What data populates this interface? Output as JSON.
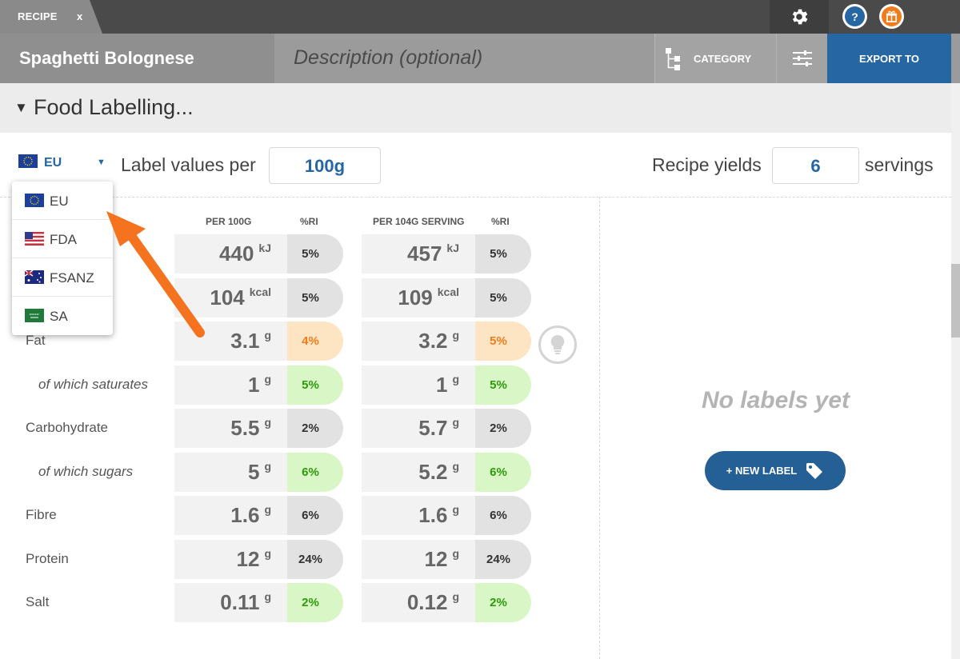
{
  "tab": {
    "label": "RECIPE",
    "close": "x"
  },
  "topbar": {
    "help": "?"
  },
  "titlebar": {
    "recipe_title": "Spaghetti Bolognese",
    "description_placeholder": "Description (optional)",
    "category_label": "CATEGORY",
    "export_label": "EXPORT TO"
  },
  "section": {
    "arrow": "▼",
    "title": "Food Labelling..."
  },
  "controls": {
    "region": "EU",
    "region_caret": "▼",
    "label_values_per": "Label values per",
    "per_value": "100g",
    "recipe_yields": "Recipe yields",
    "servings_value": "6",
    "servings": "servings"
  },
  "columns": {
    "per100": "PER 100G",
    "ri1": "%RI",
    "perserving": "PER 104G SERVING",
    "ri2": "%RI"
  },
  "rows": [
    {
      "label": "",
      "sub": false,
      "v1": "440",
      "u1": "kJ",
      "r1": "5%",
      "c1": "grey",
      "v2": "457",
      "u2": "kJ",
      "r2": "5%",
      "c2": "grey"
    },
    {
      "label": "",
      "sub": false,
      "v1": "104",
      "u1": "kcal",
      "r1": "5%",
      "c1": "grey",
      "v2": "109",
      "u2": "kcal",
      "r2": "5%",
      "c2": "grey"
    },
    {
      "label": "Fat",
      "sub": false,
      "v1": "3.1",
      "u1": "g",
      "r1": "4%",
      "c1": "orange",
      "v2": "3.2",
      "u2": "g",
      "r2": "5%",
      "c2": "orange"
    },
    {
      "label": "of which saturates",
      "sub": true,
      "v1": "1",
      "u1": "g",
      "r1": "5%",
      "c1": "green",
      "v2": "1",
      "u2": "g",
      "r2": "5%",
      "c2": "green"
    },
    {
      "label": "Carbohydrate",
      "sub": false,
      "v1": "5.5",
      "u1": "g",
      "r1": "2%",
      "c1": "grey",
      "v2": "5.7",
      "u2": "g",
      "r2": "2%",
      "c2": "grey"
    },
    {
      "label": "of which sugars",
      "sub": true,
      "v1": "5",
      "u1": "g",
      "r1": "6%",
      "c1": "green",
      "v2": "5.2",
      "u2": "g",
      "r2": "6%",
      "c2": "green"
    },
    {
      "label": "Fibre",
      "sub": false,
      "v1": "1.6",
      "u1": "g",
      "r1": "6%",
      "c1": "grey",
      "v2": "1.6",
      "u2": "g",
      "r2": "6%",
      "c2": "grey"
    },
    {
      "label": "Protein",
      "sub": false,
      "v1": "12",
      "u1": "g",
      "r1": "24%",
      "c1": "grey",
      "v2": "12",
      "u2": "g",
      "r2": "24%",
      "c2": "grey"
    },
    {
      "label": "Salt",
      "sub": false,
      "v1": "0.11",
      "u1": "g",
      "r1": "2%",
      "c1": "green",
      "v2": "0.12",
      "u2": "g",
      "r2": "2%",
      "c2": "green"
    }
  ],
  "right_panel": {
    "empty_text": "No labels yet",
    "new_label": "+ NEW LABEL"
  },
  "dropdown": {
    "options": [
      {
        "label": "EU",
        "flag": "eu-flag"
      },
      {
        "label": "FDA",
        "flag": "us-flag"
      },
      {
        "label": "FSANZ",
        "flag": "au-flag"
      },
      {
        "label": "SA",
        "flag": "sa-flag"
      }
    ]
  },
  "colors": {
    "accent_blue": "#2566a3",
    "orange": "#f07c1c",
    "pill_green": "#d9f7c6",
    "pill_orange": "#fde4c3"
  }
}
